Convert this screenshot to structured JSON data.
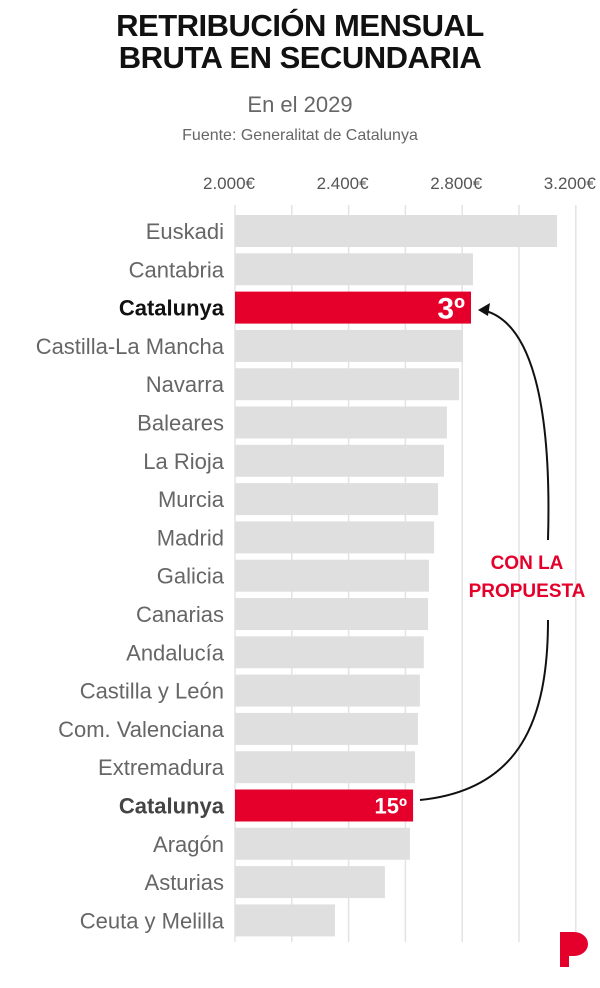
{
  "chart_data": {
    "type": "bar",
    "orientation": "horizontal",
    "title": "RETRIBUCIÓN MENSUAL BRUTA EN SECUNDARIA",
    "subtitle": "En el 2029",
    "source": "Fuente: Generalitat de Catalunya",
    "xlim": [
      2000,
      3300
    ],
    "ticks": [
      2000,
      2400,
      2800,
      3200
    ],
    "tick_labels": [
      "2.000€",
      "2.400€",
      "2.800€",
      "3.200€"
    ],
    "grid": true,
    "categories": [
      "Euskadi",
      "Cantabria",
      "Catalunya",
      "Castilla-La Mancha",
      "Navarra",
      "Baleares",
      "La Rioja",
      "Murcia",
      "Madrid",
      "Galicia",
      "Canarias",
      "Andalucía",
      "Castilla y León",
      "Com. Valenciana",
      "Extremadura",
      "Catalunya",
      "Aragón",
      "Asturias",
      "Ceuta y Melilla"
    ],
    "values": [
      3134,
      2838,
      2831,
      2803,
      2789,
      2746,
      2736,
      2715,
      2701,
      2683,
      2680,
      2665,
      2651,
      2644,
      2634,
      2627,
      2616,
      2528,
      2352
    ],
    "highlight": [
      2,
      15
    ],
    "bar_labels": {
      "2": "3º",
      "15": "15º"
    },
    "annotation": [
      "CON LA",
      "PROPUESTA"
    ],
    "colors": {
      "bar": "#e0dfe0",
      "highlight": "#e4002b",
      "grid": "#e6e2e3"
    }
  },
  "title_lines": [
    "RETRIBUCIÓN MENSUAL",
    "BRUTA EN SECUNDARIA"
  ],
  "logo": "P"
}
